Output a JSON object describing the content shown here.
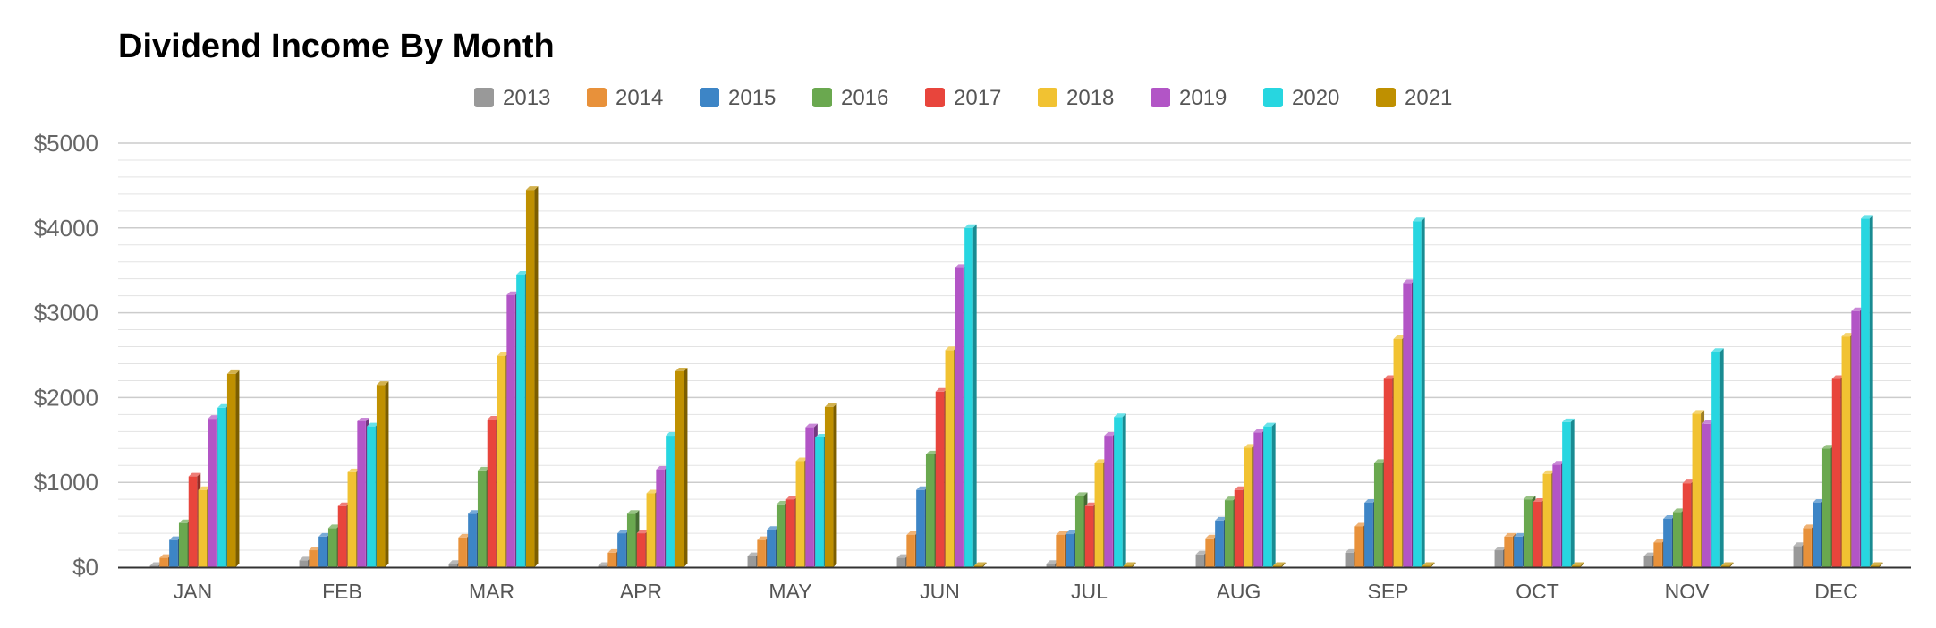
{
  "chart_data": {
    "type": "bar",
    "title": "Dividend Income By Month",
    "xlabel": "",
    "ylabel": "",
    "ylim": [
      0,
      5000
    ],
    "yticks": [
      0,
      1000,
      2000,
      3000,
      4000,
      5000
    ],
    "ytick_labels": [
      "$0",
      "$1000",
      "$2000",
      "$3000",
      "$4000",
      "$5000"
    ],
    "grid": true,
    "legend_position": "top-center",
    "categories": [
      "JAN",
      "FEB",
      "MAR",
      "APR",
      "MAY",
      "JUN",
      "JUL",
      "AUG",
      "SEP",
      "OCT",
      "NOV",
      "DEC"
    ],
    "series": [
      {
        "name": "2013",
        "color": "#999999",
        "values": [
          15,
          80,
          40,
          10,
          130,
          110,
          40,
          150,
          170,
          200,
          130,
          250
        ]
      },
      {
        "name": "2014",
        "color": "#e8913a",
        "values": [
          110,
          200,
          350,
          170,
          320,
          380,
          380,
          340,
          480,
          360,
          290,
          460
        ]
      },
      {
        "name": "2015",
        "color": "#3d85c6",
        "values": [
          320,
          360,
          630,
          400,
          440,
          910,
          390,
          550,
          760,
          360,
          570,
          760
        ]
      },
      {
        "name": "2016",
        "color": "#6aa84f",
        "values": [
          520,
          460,
          1140,
          630,
          740,
          1330,
          840,
          790,
          1230,
          800,
          650,
          1400
        ]
      },
      {
        "name": "2017",
        "color": "#e8453c",
        "values": [
          1070,
          720,
          1740,
          400,
          800,
          2070,
          720,
          910,
          2220,
          770,
          990,
          2220
        ]
      },
      {
        "name": "2018",
        "color": "#f1c232",
        "values": [
          910,
          1120,
          2490,
          870,
          1250,
          2560,
          1230,
          1410,
          2690,
          1100,
          1810,
          2720
        ]
      },
      {
        "name": "2019",
        "color": "#b255c6",
        "values": [
          1750,
          1720,
          3210,
          1150,
          1650,
          3530,
          1550,
          1590,
          3350,
          1210,
          1690,
          3020
        ]
      },
      {
        "name": "2020",
        "color": "#27d6e0",
        "values": [
          1880,
          1660,
          3450,
          1550,
          1530,
          4000,
          1770,
          1660,
          4080,
          1710,
          2540,
          4110
        ]
      },
      {
        "name": "2021",
        "color": "#bf9000",
        "values": [
          2280,
          2150,
          4450,
          2310,
          1890,
          0,
          0,
          0,
          0,
          0,
          0,
          0
        ]
      }
    ]
  }
}
